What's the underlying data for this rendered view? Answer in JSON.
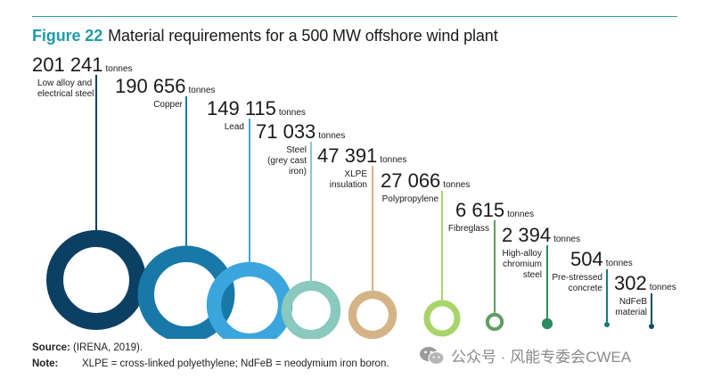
{
  "figure": {
    "label": "Figure 22",
    "title": "Material requirements for a 500 MW offshore wind plant"
  },
  "chart_data": {
    "type": "bubble",
    "title": "Material requirements for a 500 MW offshore wind plant",
    "unit": "tonnes",
    "items": [
      {
        "value_text": "201 241",
        "value": 201241,
        "label": [
          "Low alloy and",
          "electrical steel"
        ],
        "color": "#0b3f63"
      },
      {
        "value_text": "190 656",
        "value": 190656,
        "label": [
          "Copper"
        ],
        "color": "#1878a8"
      },
      {
        "value_text": "149 115",
        "value": 149115,
        "label": [
          "Lead"
        ],
        "color": "#3aa6dd"
      },
      {
        "value_text": "71 033",
        "value": 71033,
        "label": [
          "Steel",
          "(grey cast",
          "iron)"
        ],
        "color": "#8ac9bd"
      },
      {
        "value_text": "47 391",
        "value": 47391,
        "label": [
          "XLPE",
          "insulation"
        ],
        "color": "#d4b386"
      },
      {
        "value_text": "27 066",
        "value": 27066,
        "label": [
          "Polypropylene"
        ],
        "color": "#a8d46a"
      },
      {
        "value_text": "6 615",
        "value": 6615,
        "label": [
          "Fibreglass"
        ],
        "color": "#5e9e62"
      },
      {
        "value_text": "2 394",
        "value": 2394,
        "label": [
          "High-alloy",
          "chromium",
          "steel"
        ],
        "color": "#2d8a5e"
      },
      {
        "value_text": "504",
        "value": 504,
        "label": [
          "Pre-stressed",
          "concrete"
        ],
        "color": "#177a74"
      },
      {
        "value_text": "302",
        "value": 302,
        "label": [
          "NdFeB",
          "material"
        ],
        "color": "#0c4f61"
      }
    ]
  },
  "footer": {
    "source_label": "Source:",
    "source_text": "(IRENA, 2019).",
    "note_label": "Note:",
    "note_text": "XLPE = cross-linked polyethylene; NdFeB = neodymium iron boron."
  },
  "watermark": {
    "text": "公众号 · 风能专委会CWEA",
    "icon": "wechat-icon"
  }
}
